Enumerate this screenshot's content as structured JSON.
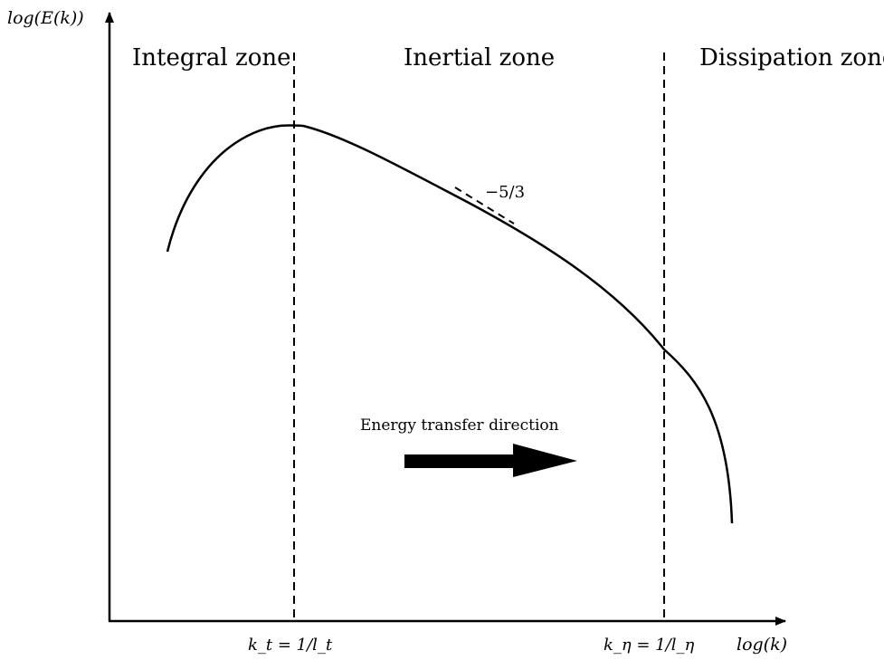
{
  "axes": {
    "y_label": "log(E(k))",
    "x_label": "log(k)"
  },
  "zones": {
    "integral": "Integral zone",
    "inertial": "Inertial zone",
    "dissipation": "Dissipation zone"
  },
  "markers": {
    "k_t": "k_t = 1/l_t",
    "k_eta": "k_η = 1/l_η"
  },
  "slope_label": "−5/3",
  "energy_transfer": {
    "label": "Energy transfer direction"
  }
}
